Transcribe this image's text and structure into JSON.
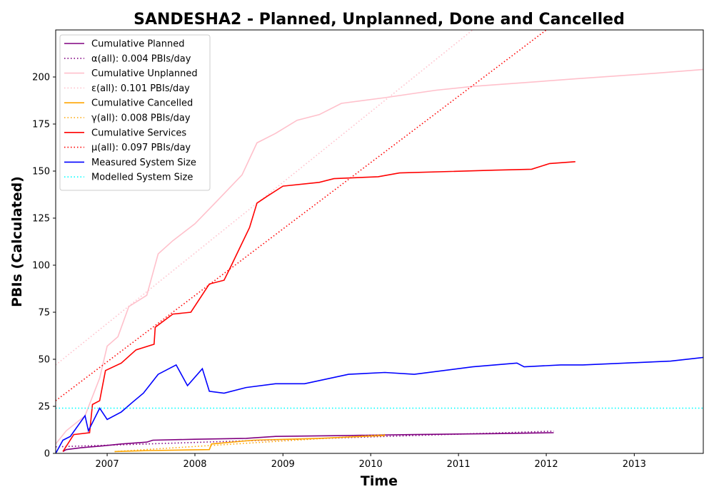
{
  "chart_data": {
    "type": "line",
    "title": "SANDESHA2 - Planned, Unplanned, Done  and Cancelled",
    "xlabel": "Time",
    "ylabel": "PBIs (Calculated)",
    "xlim": [
      "2006-06-01",
      "2013-10-15"
    ],
    "ylim": [
      0,
      225
    ],
    "xticks": [
      "2007",
      "2008",
      "2009",
      "2010",
      "2011",
      "2012",
      "2013"
    ],
    "yticks": [
      0,
      25,
      50,
      75,
      100,
      125,
      150,
      175,
      200
    ],
    "grid": false,
    "legend_position": "upper-left",
    "series": [
      {
        "name": "Cumulative Planned",
        "color": "#800080",
        "style": "solid",
        "points": [
          [
            "2006-07-01",
            1
          ],
          [
            "2006-07-15",
            2
          ],
          [
            "2006-09-15",
            3
          ],
          [
            "2006-12-15",
            4
          ],
          [
            "2007-03-01",
            5
          ],
          [
            "2007-06-15",
            6
          ],
          [
            "2007-07-10",
            7
          ],
          [
            "2008-01-01",
            7.5
          ],
          [
            "2008-08-01",
            8
          ],
          [
            "2008-12-01",
            9
          ],
          [
            "2009-10-01",
            9.5
          ],
          [
            "2010-07-01",
            10
          ],
          [
            "2011-06-01",
            10.5
          ],
          [
            "2012-02-01",
            11
          ]
        ]
      },
      {
        "name": "α(all): 0.004 PBIs/day",
        "color": "#800080",
        "style": "dotted",
        "points": [
          [
            "2006-06-01",
            3.5
          ],
          [
            "2012-02-01",
            11.8
          ]
        ]
      },
      {
        "name": "Cumulative Unplanned",
        "color": "#ffc0cb",
        "style": "solid",
        "points": [
          [
            "2006-06-01",
            5
          ],
          [
            "2006-07-15",
            12
          ],
          [
            "2006-10-01",
            20
          ],
          [
            "2006-12-01",
            40
          ],
          [
            "2007-01-01",
            57
          ],
          [
            "2007-02-15",
            62
          ],
          [
            "2007-04-01",
            78
          ],
          [
            "2007-06-15",
            84
          ],
          [
            "2007-08-01",
            106
          ],
          [
            "2007-10-01",
            113
          ],
          [
            "2008-01-01",
            122
          ],
          [
            "2008-04-01",
            134
          ],
          [
            "2008-07-15",
            148
          ],
          [
            "2008-09-15",
            165
          ],
          [
            "2008-12-01",
            170
          ],
          [
            "2009-03-01",
            177
          ],
          [
            "2009-06-01",
            180
          ],
          [
            "2009-09-01",
            186
          ],
          [
            "2010-03-01",
            189
          ],
          [
            "2010-10-01",
            193
          ],
          [
            "2011-03-01",
            195
          ],
          [
            "2011-10-01",
            197
          ],
          [
            "2012-05-01",
            199
          ],
          [
            "2013-04-01",
            202
          ],
          [
            "2013-10-15",
            204
          ]
        ]
      },
      {
        "name": "ε(all): 0.101 PBIs/day",
        "color": "#ffc0cb",
        "style": "dotted",
        "points": [
          [
            "2006-06-01",
            47
          ],
          [
            "2011-03-01",
            225
          ]
        ]
      },
      {
        "name": "Cumulative Cancelled",
        "color": "#ffa500",
        "style": "solid",
        "points": [
          [
            "2007-02-01",
            1
          ],
          [
            "2007-07-01",
            1.5
          ],
          [
            "2008-03-01",
            2
          ],
          [
            "2008-03-10",
            5
          ],
          [
            "2008-09-01",
            7
          ],
          [
            "2009-06-01",
            8
          ],
          [
            "2010-03-01",
            9.5
          ]
        ]
      },
      {
        "name": "γ(all): 0.008 PBIs/day",
        "color": "#ffa500",
        "style": "dotted",
        "points": [
          [
            "2007-02-01",
            1
          ],
          [
            "2010-03-01",
            10
          ]
        ]
      },
      {
        "name": "Cumulative Services",
        "color": "#ff0000",
        "style": "solid",
        "points": [
          [
            "2006-07-01",
            1
          ],
          [
            "2006-08-15",
            10
          ],
          [
            "2006-10-20",
            11
          ],
          [
            "2006-11-01",
            26
          ],
          [
            "2006-12-01",
            28
          ],
          [
            "2006-12-25",
            44
          ],
          [
            "2007-03-01",
            48
          ],
          [
            "2007-05-01",
            55
          ],
          [
            "2007-07-15",
            58
          ],
          [
            "2007-07-20",
            67
          ],
          [
            "2007-10-01",
            74
          ],
          [
            "2007-12-15",
            75
          ],
          [
            "2008-03-01",
            90
          ],
          [
            "2008-05-01",
            92
          ],
          [
            "2008-06-01",
            100
          ],
          [
            "2008-07-01",
            108
          ],
          [
            "2008-08-15",
            120
          ],
          [
            "2008-09-15",
            133
          ],
          [
            "2008-11-01",
            137
          ],
          [
            "2009-01-01",
            142
          ],
          [
            "2009-06-01",
            144
          ],
          [
            "2009-08-01",
            146
          ],
          [
            "2010-02-01",
            147
          ],
          [
            "2010-05-01",
            149
          ],
          [
            "2011-06-01",
            150.5
          ],
          [
            "2011-11-01",
            151
          ],
          [
            "2012-01-15",
            154
          ],
          [
            "2012-05-01",
            155
          ]
        ]
      },
      {
        "name": "μ(all): 0.097 PBIs/day",
        "color": "#ff0000",
        "style": "dotted",
        "points": [
          [
            "2006-06-01",
            28
          ],
          [
            "2012-01-01",
            225
          ]
        ]
      },
      {
        "name": "Measured System Size",
        "color": "#0000ff",
        "style": "solid",
        "points": [
          [
            "2006-06-01",
            0
          ],
          [
            "2006-07-01",
            7
          ],
          [
            "2006-08-01",
            9
          ],
          [
            "2006-10-01",
            20
          ],
          [
            "2006-10-15",
            12
          ],
          [
            "2006-12-01",
            24
          ],
          [
            "2007-01-01",
            18
          ],
          [
            "2007-03-01",
            22
          ],
          [
            "2007-04-15",
            27
          ],
          [
            "2007-06-01",
            32
          ],
          [
            "2007-08-01",
            42
          ],
          [
            "2007-10-15",
            47
          ],
          [
            "2007-12-01",
            36
          ],
          [
            "2008-02-01",
            45
          ],
          [
            "2008-03-01",
            33
          ],
          [
            "2008-05-01",
            32
          ],
          [
            "2008-08-01",
            35
          ],
          [
            "2008-12-01",
            37
          ],
          [
            "2009-04-01",
            37
          ],
          [
            "2009-10-01",
            42
          ],
          [
            "2010-03-01",
            43
          ],
          [
            "2010-07-01",
            42
          ],
          [
            "2011-03-01",
            46
          ],
          [
            "2011-09-01",
            48
          ],
          [
            "2011-10-01",
            46
          ],
          [
            "2012-03-01",
            47
          ],
          [
            "2012-06-01",
            47
          ],
          [
            "2013-06-01",
            49
          ],
          [
            "2013-10-15",
            51
          ]
        ]
      },
      {
        "name": "Modelled System Size",
        "color": "#00ffff",
        "style": "dotted",
        "points": [
          [
            "2006-06-01",
            24
          ],
          [
            "2013-10-15",
            24
          ]
        ]
      }
    ]
  }
}
